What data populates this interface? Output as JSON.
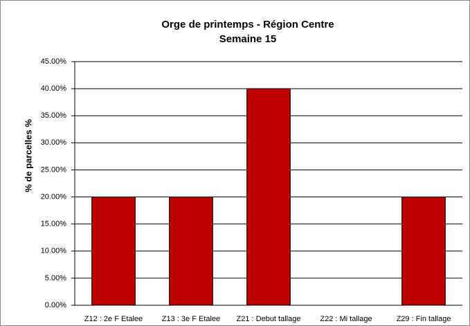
{
  "chart_data": {
    "type": "bar",
    "title": "Orge de printemps - Région Centre",
    "subtitle": "Semaine 15",
    "y_label": "% de parcelles %",
    "categories": [
      "Z12 : 2e F Etalee",
      "Z13 : 3e F Etalee",
      "Z21 : Debut tallage",
      "Z22 : Mi tallage",
      "Z29 : Fin tallage"
    ],
    "values": [
      20,
      20,
      40,
      0,
      20
    ],
    "color": "#c00000",
    "ylim": [
      0,
      45
    ],
    "yticks": [
      {
        "value": 0,
        "label": "0.00%"
      },
      {
        "value": 5,
        "label": "5.00%"
      },
      {
        "value": 10,
        "label": "10.00%"
      },
      {
        "value": 15,
        "label": "15.00%"
      },
      {
        "value": 20,
        "label": "20.00%"
      },
      {
        "value": 25,
        "label": "25.00%"
      },
      {
        "value": 30,
        "label": "30.00%"
      },
      {
        "value": 35,
        "label": "35.00%"
      },
      {
        "value": 40,
        "label": "40.00%"
      },
      {
        "value": 45,
        "label": "45.00%"
      }
    ],
    "grid": true
  }
}
